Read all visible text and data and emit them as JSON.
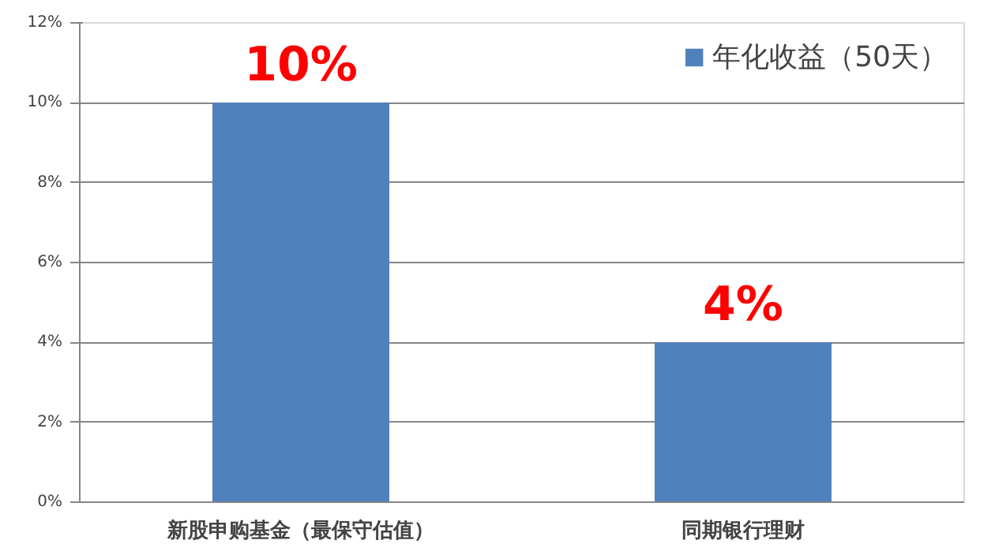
{
  "chart_data": {
    "type": "bar",
    "categories": [
      "新股申购基金（最保守估值）",
      "同期银行理财"
    ],
    "series": [
      {
        "name": "年化收益（50天）",
        "color": "#4f81bd",
        "values": [
          10,
          4
        ],
        "value_labels": [
          "10%",
          "4%"
        ]
      }
    ],
    "ylim": [
      0,
      12
    ],
    "yticks": [
      {
        "value": 0,
        "label": "0%"
      },
      {
        "value": 2,
        "label": "2%"
      },
      {
        "value": 4,
        "label": "4%"
      },
      {
        "value": 6,
        "label": "6%"
      },
      {
        "value": 8,
        "label": "8%"
      },
      {
        "value": 10,
        "label": "10%"
      },
      {
        "value": 12,
        "label": "12%"
      }
    ],
    "grid": "y",
    "legend": "top right"
  }
}
